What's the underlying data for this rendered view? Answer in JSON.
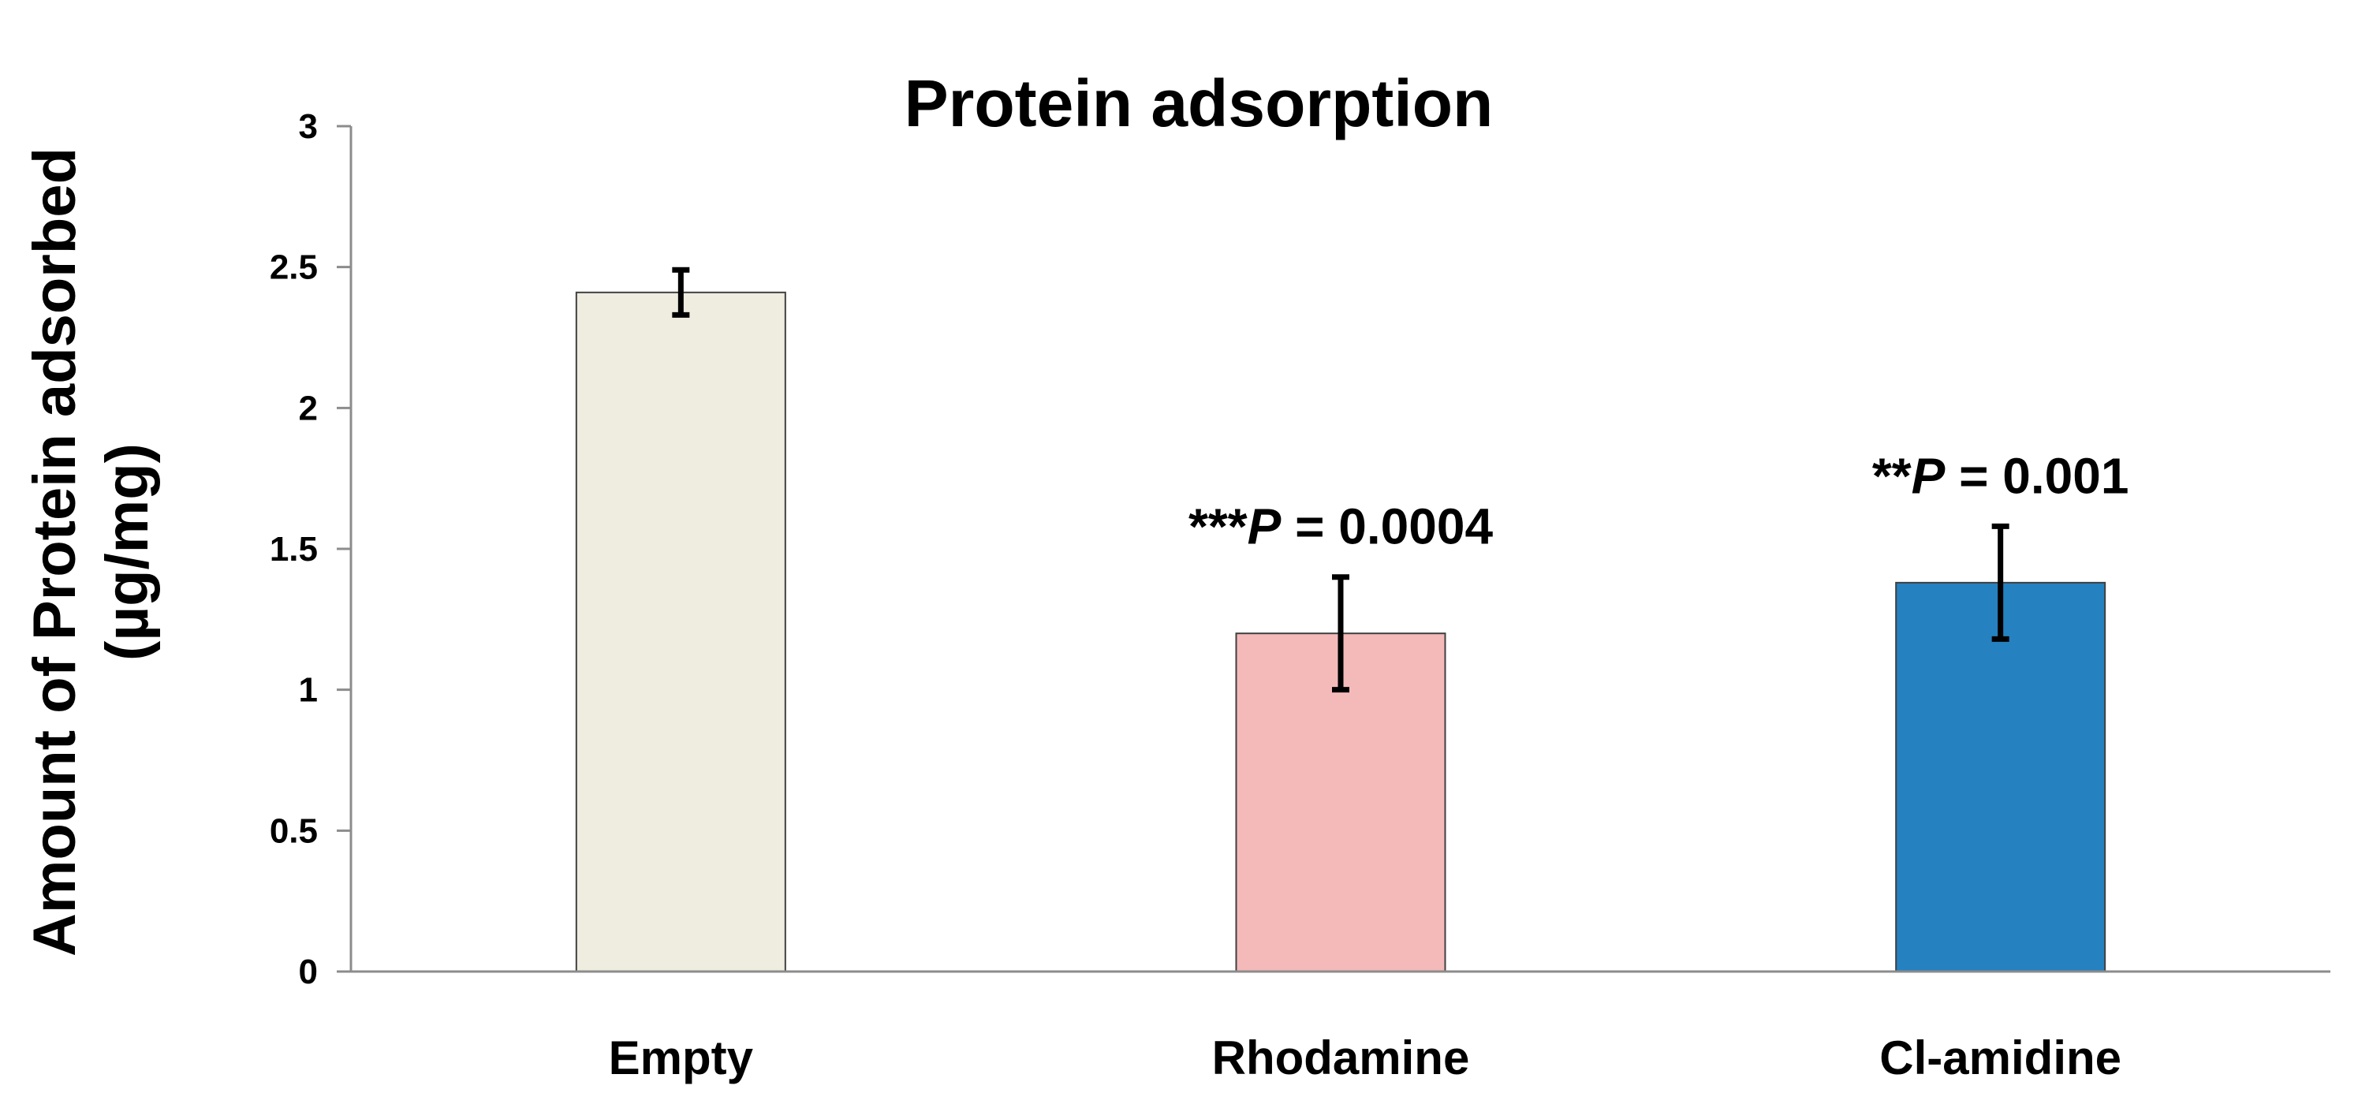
{
  "chart_data": {
    "type": "bar",
    "title": "Protein adsorption",
    "ylabel_lines": [
      "Amount of Protein adsorbed",
      "(µg/mg)"
    ],
    "xlabel": "",
    "ylim": [
      0,
      3
    ],
    "yticks": [
      0,
      0.5,
      1,
      1.5,
      2,
      2.5,
      3
    ],
    "ytick_labels": [
      "0",
      "0.5",
      "1",
      "1.5",
      "2",
      "2.5",
      "3"
    ],
    "grid": false,
    "legend": "none",
    "categories": [
      "Empty",
      "Rhodamine",
      "Cl-amidine"
    ],
    "values": [
      2.41,
      1.2,
      1.38
    ],
    "errors": [
      0.08,
      0.2,
      0.2
    ],
    "colors": [
      "#efede0",
      "#f4baba",
      "#2581c0"
    ],
    "annotations": [
      {
        "category": "Rhodamine",
        "stars": "***",
        "p_letter": "P",
        "rest": " = 0.0004"
      },
      {
        "category": "Cl-amidine",
        "stars": "**",
        "p_letter": "P",
        "rest": " = 0.001"
      }
    ]
  }
}
